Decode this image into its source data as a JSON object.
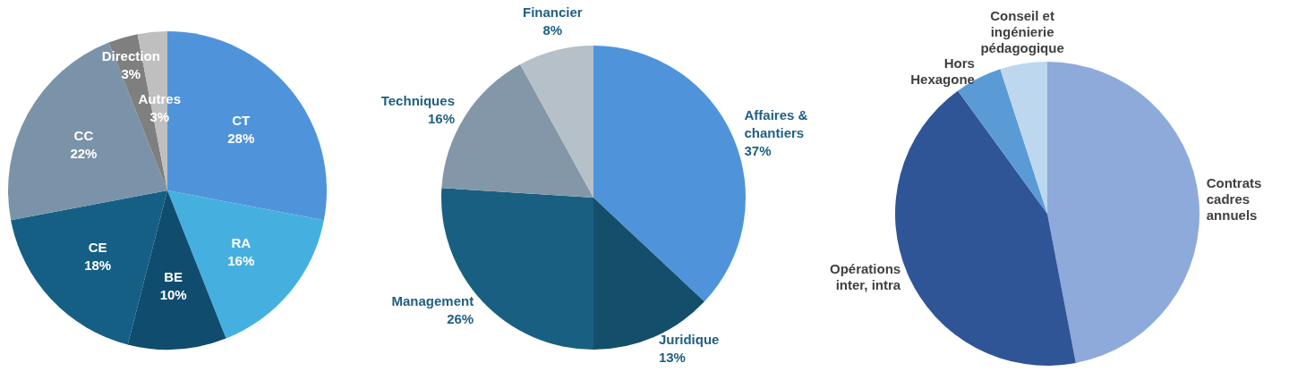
{
  "chart_data": [
    {
      "type": "pie",
      "categories": [
        "CT",
        "RA",
        "BE",
        "CE",
        "CC",
        "Direction",
        "Autres"
      ],
      "values": [
        28,
        16,
        10,
        18,
        22,
        3,
        3
      ],
      "colors": [
        "#4f94db",
        "#45b0e0",
        "#0f4c6e",
        "#155f85",
        "#7a93a8",
        "#7f7f7f",
        "#bfbfbf"
      ],
      "value_labels": [
        "28%",
        "16%",
        "10%",
        "18%",
        "22%",
        "3%",
        "3%"
      ]
    },
    {
      "type": "pie",
      "categories": [
        "Affaires & chantiers",
        "Juridique",
        "Management",
        "Techniques",
        "Financier"
      ],
      "values": [
        37,
        13,
        26,
        16,
        8
      ],
      "colors": [
        "#4f94db",
        "#134f6b",
        "#185f82",
        "#8497a8",
        "#b5c0c9"
      ],
      "value_labels": [
        "37%",
        "13%",
        "26%",
        "16%",
        "8%"
      ]
    },
    {
      "type": "pie",
      "categories": [
        "Contrats cadres annuels",
        "Opérations inter, intra",
        "Hors Hexagone",
        "Conseil et ingénierie pédagogique"
      ],
      "values": [
        47,
        43,
        5,
        5
      ],
      "colors": [
        "#8eaadb",
        "#2f5597",
        "#5b9bd5",
        "#bdd7ee"
      ]
    }
  ]
}
